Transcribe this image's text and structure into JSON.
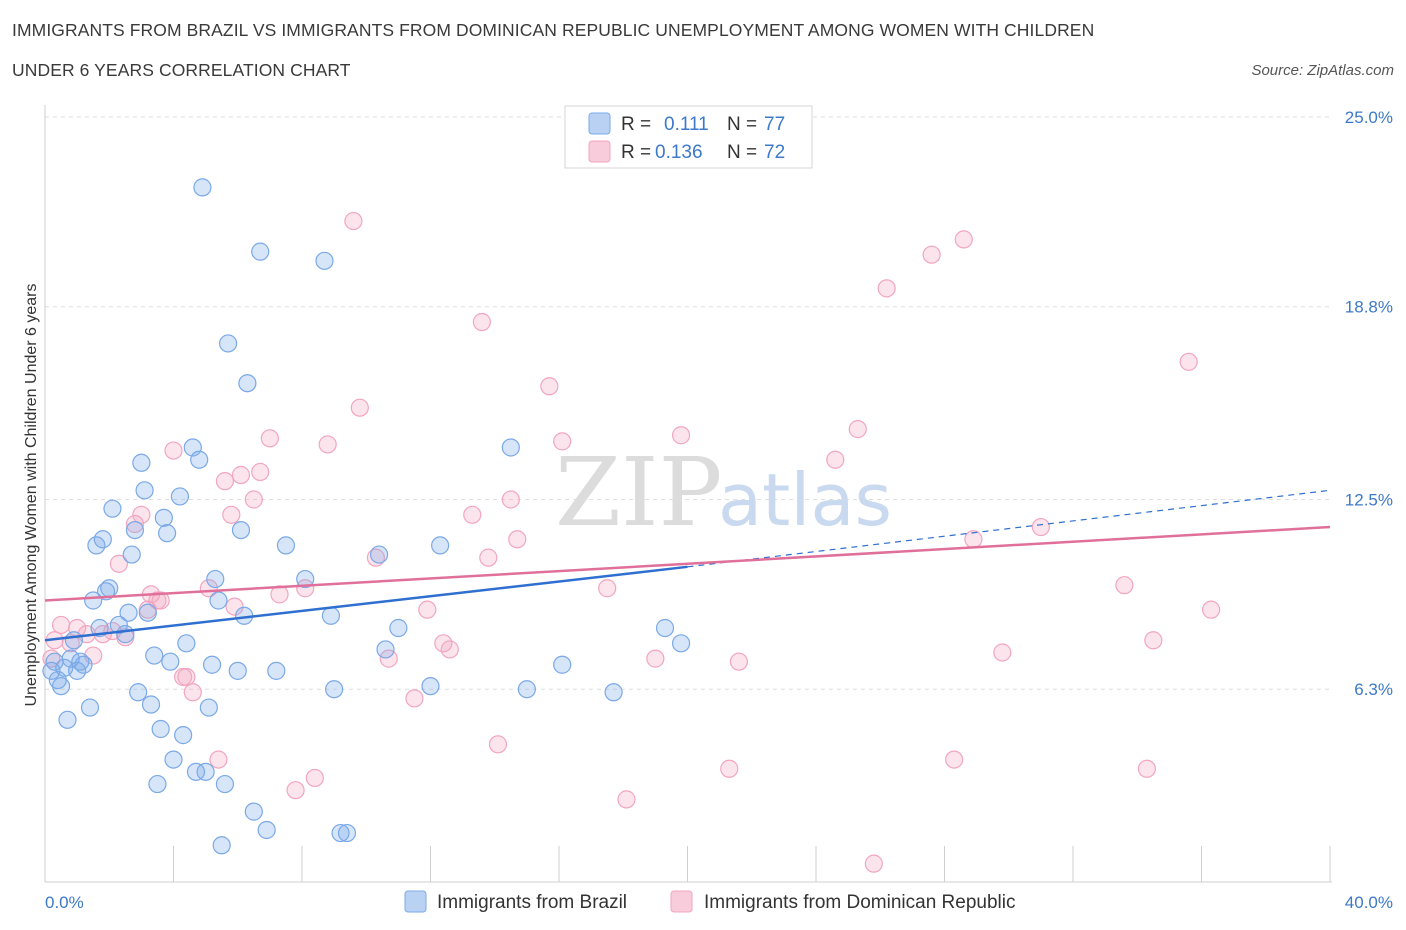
{
  "title_line1": "IMMIGRANTS FROM BRAZIL VS IMMIGRANTS FROM DOMINICAN REPUBLIC UNEMPLOYMENT AMONG WOMEN WITH CHILDREN",
  "title_line2": "UNDER 6 YEARS CORRELATION CHART",
  "source": "Source: ZipAtlas.com",
  "watermark": "ZIPatlas",
  "colors": {
    "brazil": "#7aa9e8",
    "brazil_line": "#2f6fd0",
    "dominican": "#f2a6bf",
    "dominican_line": "#e0709a",
    "tick": "#3d79c9"
  },
  "legend": {
    "brazil": {
      "r_label": "R =",
      "r_value": "0.111",
      "n_label": "N =",
      "n_value": "77"
    },
    "dominican": {
      "r_label": "R =",
      "r_value": "0.136",
      "n_label": "N =",
      "n_value": "72"
    }
  },
  "chart_data": {
    "type": "scatter",
    "title": "Immigrants from Brazil vs Immigrants from Dominican Republic Unemployment Among Women with Children Under 6 years Correlation Chart",
    "xlabel": "",
    "ylabel": "Unemployment Among Women with Children Under 6 years",
    "xlim": [
      0,
      40
    ],
    "ylim": [
      0,
      25.0
    ],
    "x_tick_labels": [
      "0.0%",
      "40.0%"
    ],
    "y_ticks": [
      6.3,
      12.5,
      18.8,
      25.0
    ],
    "y_tick_labels": [
      "6.3%",
      "12.5%",
      "18.8%",
      "25.0%"
    ],
    "series": [
      {
        "name": "Immigrants from Brazil",
        "r": 0.111,
        "n": 77,
        "trend": {
          "x": [
            0,
            20
          ],
          "y": [
            7.9,
            10.3
          ],
          "dashed_to": [
            40,
            12.8
          ]
        },
        "points": [
          [
            0.2,
            6.9
          ],
          [
            0.3,
            7.2
          ],
          [
            0.4,
            6.6
          ],
          [
            0.5,
            6.4
          ],
          [
            0.6,
            7.0
          ],
          [
            0.7,
            5.3
          ],
          [
            0.8,
            7.3
          ],
          [
            0.9,
            7.9
          ],
          [
            1.0,
            6.9
          ],
          [
            1.1,
            7.2
          ],
          [
            1.2,
            7.1
          ],
          [
            1.4,
            5.7
          ],
          [
            1.5,
            9.2
          ],
          [
            1.6,
            11.0
          ],
          [
            1.7,
            8.3
          ],
          [
            1.8,
            11.2
          ],
          [
            1.9,
            9.5
          ],
          [
            2.0,
            9.6
          ],
          [
            2.1,
            12.2
          ],
          [
            2.3,
            8.4
          ],
          [
            2.5,
            8.1
          ],
          [
            2.6,
            8.8
          ],
          [
            2.7,
            10.7
          ],
          [
            2.8,
            11.5
          ],
          [
            2.9,
            6.2
          ],
          [
            3.0,
            13.7
          ],
          [
            3.1,
            12.8
          ],
          [
            3.2,
            8.8
          ],
          [
            3.3,
            5.8
          ],
          [
            3.4,
            7.4
          ],
          [
            3.5,
            3.2
          ],
          [
            3.6,
            5.0
          ],
          [
            3.7,
            11.9
          ],
          [
            3.8,
            11.4
          ],
          [
            3.9,
            7.2
          ],
          [
            4.0,
            4.0
          ],
          [
            4.2,
            12.6
          ],
          [
            4.3,
            4.8
          ],
          [
            4.4,
            7.8
          ],
          [
            4.6,
            14.2
          ],
          [
            4.7,
            3.6
          ],
          [
            4.8,
            13.8
          ],
          [
            4.9,
            22.7
          ],
          [
            5.0,
            3.6
          ],
          [
            5.1,
            5.7
          ],
          [
            5.2,
            7.1
          ],
          [
            5.3,
            9.9
          ],
          [
            5.4,
            9.2
          ],
          [
            5.5,
            1.2
          ],
          [
            5.6,
            3.2
          ],
          [
            5.7,
            17.6
          ],
          [
            6.0,
            6.9
          ],
          [
            6.1,
            11.5
          ],
          [
            6.2,
            8.7
          ],
          [
            6.3,
            16.3
          ],
          [
            6.5,
            2.3
          ],
          [
            6.7,
            20.6
          ],
          [
            6.9,
            1.7
          ],
          [
            7.2,
            6.9
          ],
          [
            7.5,
            11.0
          ],
          [
            8.1,
            9.9
          ],
          [
            8.7,
            20.3
          ],
          [
            8.9,
            8.7
          ],
          [
            9.0,
            6.3
          ],
          [
            9.2,
            1.6
          ],
          [
            9.4,
            1.6
          ],
          [
            10.4,
            10.7
          ],
          [
            10.6,
            7.6
          ],
          [
            11.0,
            8.3
          ],
          [
            12.0,
            6.4
          ],
          [
            12.3,
            11.0
          ],
          [
            14.5,
            14.2
          ],
          [
            15.0,
            6.3
          ],
          [
            16.1,
            7.1
          ],
          [
            17.7,
            6.2
          ],
          [
            19.3,
            8.3
          ],
          [
            19.8,
            7.8
          ]
        ]
      },
      {
        "name": "Immigrants from Dominican Republic",
        "r": 0.136,
        "n": 72,
        "trend": {
          "x": [
            0,
            40
          ],
          "y": [
            9.2,
            11.6
          ]
        },
        "points": [
          [
            0.2,
            7.3
          ],
          [
            0.3,
            7.9
          ],
          [
            0.5,
            8.4
          ],
          [
            0.8,
            7.8
          ],
          [
            1.0,
            8.3
          ],
          [
            1.3,
            8.1
          ],
          [
            1.5,
            7.4
          ],
          [
            1.8,
            8.1
          ],
          [
            2.1,
            8.2
          ],
          [
            2.3,
            10.4
          ],
          [
            2.5,
            8.0
          ],
          [
            2.8,
            11.7
          ],
          [
            3.0,
            12.0
          ],
          [
            3.2,
            8.9
          ],
          [
            3.3,
            9.4
          ],
          [
            3.5,
            9.2
          ],
          [
            3.6,
            9.2
          ],
          [
            4.0,
            14.1
          ],
          [
            4.3,
            6.7
          ],
          [
            4.4,
            6.7
          ],
          [
            4.6,
            6.2
          ],
          [
            5.1,
            9.6
          ],
          [
            5.4,
            4.0
          ],
          [
            5.6,
            13.1
          ],
          [
            5.8,
            12.0
          ],
          [
            5.9,
            9.0
          ],
          [
            6.1,
            13.3
          ],
          [
            6.5,
            12.5
          ],
          [
            6.7,
            13.4
          ],
          [
            7.0,
            14.5
          ],
          [
            7.3,
            9.4
          ],
          [
            7.8,
            3.0
          ],
          [
            8.1,
            9.6
          ],
          [
            8.4,
            3.4
          ],
          [
            8.8,
            14.3
          ],
          [
            9.6,
            21.6
          ],
          [
            9.8,
            15.5
          ],
          [
            10.3,
            10.6
          ],
          [
            10.7,
            7.3
          ],
          [
            11.5,
            6.0
          ],
          [
            11.9,
            8.9
          ],
          [
            12.4,
            7.8
          ],
          [
            12.6,
            7.6
          ],
          [
            13.3,
            12.0
          ],
          [
            13.6,
            18.3
          ],
          [
            13.8,
            10.6
          ],
          [
            14.1,
            4.5
          ],
          [
            14.5,
            12.5
          ],
          [
            14.7,
            11.2
          ],
          [
            15.7,
            16.2
          ],
          [
            16.1,
            14.4
          ],
          [
            17.5,
            9.6
          ],
          [
            18.1,
            2.7
          ],
          [
            19.0,
            7.3
          ],
          [
            19.8,
            14.6
          ],
          [
            21.3,
            3.7
          ],
          [
            21.6,
            7.2
          ],
          [
            24.6,
            13.8
          ],
          [
            25.3,
            14.8
          ],
          [
            25.8,
            0.6
          ],
          [
            26.2,
            19.4
          ],
          [
            27.6,
            20.5
          ],
          [
            28.3,
            4.0
          ],
          [
            28.6,
            21.0
          ],
          [
            28.9,
            11.2
          ],
          [
            29.8,
            7.5
          ],
          [
            31.0,
            11.6
          ],
          [
            33.6,
            9.7
          ],
          [
            34.3,
            3.7
          ],
          [
            34.5,
            7.9
          ],
          [
            35.6,
            17.0
          ],
          [
            36.3,
            8.9
          ]
        ]
      }
    ]
  },
  "bottom_legend": {
    "brazil": "Immigrants from Brazil",
    "dominican": "Immigrants from Dominican Republic"
  }
}
